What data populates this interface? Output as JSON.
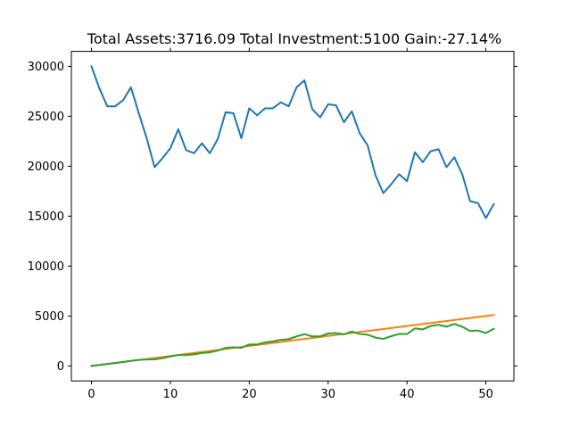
{
  "chart_data": {
    "type": "line",
    "title": "Total Assets:3716.09  Total Investment:5100  Gain:-27.14%",
    "xlabel": "",
    "ylabel": "",
    "xlim": [
      -2.55,
      53.55
    ],
    "ylim": [
      -1500,
      31500
    ],
    "grid": false,
    "x_ticks": [
      0,
      10,
      20,
      30,
      40,
      50
    ],
    "y_ticks": [
      0,
      5000,
      10000,
      15000,
      20000,
      25000,
      30000
    ],
    "x": [
      0,
      1,
      2,
      3,
      4,
      5,
      6,
      7,
      8,
      9,
      10,
      11,
      12,
      13,
      14,
      15,
      16,
      17,
      18,
      19,
      20,
      21,
      22,
      23,
      24,
      25,
      26,
      27,
      28,
      29,
      30,
      31,
      32,
      33,
      34,
      35,
      36,
      37,
      38,
      39,
      40,
      41,
      42,
      43,
      44,
      45,
      46,
      47,
      48,
      49,
      50,
      51
    ],
    "series": [
      {
        "color": "#1f77b4",
        "values": [
          30000,
          27800,
          26000,
          26000,
          26600,
          27900,
          25300,
          22800,
          19900,
          20800,
          21800,
          23700,
          21600,
          21300,
          22300,
          21300,
          22700,
          25400,
          25300,
          22800,
          25800,
          25100,
          25800,
          25800,
          26400,
          26000,
          27900,
          28600,
          25700,
          24900,
          26200,
          26100,
          24400,
          25500,
          23300,
          22100,
          19100,
          17300,
          18200,
          19200,
          18500,
          21400,
          20400,
          21500,
          21700,
          19900,
          20900,
          19200,
          16500,
          16300,
          14800,
          16200
        ]
      },
      {
        "color": "#ff7f0e",
        "values": [
          0,
          100,
          200,
          300,
          400,
          500,
          600,
          700,
          800,
          900,
          1000,
          1100,
          1200,
          1300,
          1400,
          1500,
          1600,
          1700,
          1800,
          1900,
          2000,
          2100,
          2200,
          2300,
          2400,
          2500,
          2600,
          2700,
          2800,
          2900,
          3000,
          3100,
          3200,
          3300,
          3400,
          3500,
          3600,
          3700,
          3800,
          3900,
          4000,
          4100,
          4200,
          4300,
          4400,
          4500,
          4600,
          4700,
          4800,
          4900,
          5000,
          5100
        ]
      },
      {
        "color": "#2ca02c",
        "values": [
          0,
          93,
          187,
          290,
          393,
          510,
          600,
          650,
          662,
          780,
          945,
          1100,
          1090,
          1160,
          1300,
          1360,
          1540,
          1810,
          1870,
          1810,
          2150,
          2150,
          2360,
          2460,
          2620,
          2680,
          2960,
          3180,
          2960,
          2960,
          3250,
          3290,
          3160,
          3440,
          3200,
          3130,
          2840,
          2710,
          2980,
          3200,
          3190,
          3760,
          3660,
          4000,
          4120,
          3930,
          4200,
          3930,
          3510,
          3550,
          3290,
          3716.09
        ]
      }
    ]
  }
}
